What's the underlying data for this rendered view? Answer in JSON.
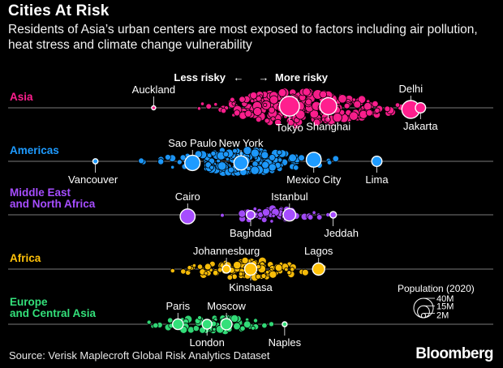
{
  "header": {
    "title": "Cities At Risk",
    "subtitle": "Residents of Asia’s urban centers are most exposed to factors including air pollution, heat stress and climate change vulnerability"
  },
  "chart_data": {
    "type": "scatter",
    "title": "Cities At Risk",
    "direction": {
      "left": "Less risky",
      "right": "More risky"
    },
    "xlabel": "",
    "ylabel": "",
    "size_legend": {
      "title": "Population (2020)",
      "values": [
        40000000,
        15000000,
        2000000
      ],
      "labels": [
        "40M",
        "15M",
        "2M"
      ]
    },
    "series": [
      {
        "name": "Asia",
        "color": "#ff1f8e",
        "labeled_cities": [
          {
            "name": "Auckland",
            "risk": 0.3,
            "population_m": 1.6
          },
          {
            "name": "Tokyo",
            "risk": 0.58,
            "population_m": 37
          },
          {
            "name": "Shanghai",
            "risk": 0.66,
            "population_m": 27
          },
          {
            "name": "Delhi",
            "risk": 0.83,
            "population_m": 30
          },
          {
            "name": "Jakarta",
            "risk": 0.85,
            "population_m": 10
          }
        ]
      },
      {
        "name": "Americas",
        "color": "#1e9bff",
        "labeled_cities": [
          {
            "name": "Vancouver",
            "risk": 0.18,
            "population_m": 2.5
          },
          {
            "name": "Sao Paulo",
            "risk": 0.38,
            "population_m": 22
          },
          {
            "name": "New York",
            "risk": 0.48,
            "population_m": 19
          },
          {
            "name": "Mexico City",
            "risk": 0.63,
            "population_m": 21
          },
          {
            "name": "Lima",
            "risk": 0.76,
            "population_m": 10
          }
        ]
      },
      {
        "name": "Middle East and North Africa",
        "color": "#a64dff",
        "labeled_cities": [
          {
            "name": "Cairo",
            "risk": 0.37,
            "population_m": 21
          },
          {
            "name": "Baghdad",
            "risk": 0.5,
            "population_m": 7
          },
          {
            "name": "Istanbul",
            "risk": 0.58,
            "population_m": 15
          },
          {
            "name": "Jeddah",
            "risk": 0.67,
            "population_m": 4
          }
        ]
      },
      {
        "name": "Africa",
        "color": "#ffc20a",
        "labeled_cities": [
          {
            "name": "Johannesburg",
            "risk": 0.45,
            "population_m": 6
          },
          {
            "name": "Kinshasa",
            "risk": 0.5,
            "population_m": 14
          },
          {
            "name": "Lagos",
            "risk": 0.64,
            "population_m": 14
          }
        ]
      },
      {
        "name": "Europe and Central Asia",
        "color": "#33e07a",
        "labeled_cities": [
          {
            "name": "Paris",
            "risk": 0.35,
            "population_m": 11
          },
          {
            "name": "London",
            "risk": 0.41,
            "population_m": 9
          },
          {
            "name": "Moscow",
            "risk": 0.45,
            "population_m": 12
          },
          {
            "name": "Naples",
            "risk": 0.57,
            "population_m": 2.2
          }
        ]
      }
    ]
  },
  "footer": {
    "source": "Source: Verisk Maplecroft Global Risk Analytics Dataset",
    "brand": "Bloomberg"
  }
}
